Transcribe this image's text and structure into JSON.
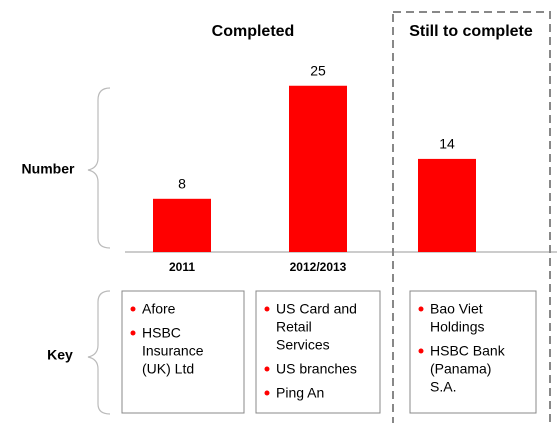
{
  "chart_data": {
    "type": "bar",
    "headers": [
      "Completed",
      "Still to complete"
    ],
    "row_labels": [
      "Number",
      "Key"
    ],
    "categories": [
      "2011",
      "2012/2013",
      null
    ],
    "values": [
      8,
      25,
      14
    ],
    "color": "#ff0000",
    "keys": [
      [
        [
          "Afore"
        ],
        [
          "HSBC",
          "Insurance",
          "(UK) Ltd"
        ]
      ],
      [
        [
          "US Card and",
          "Retail",
          "Services"
        ],
        [
          "US branches"
        ],
        [
          "Ping An"
        ]
      ],
      [
        [
          "Bao Viet",
          "Holdings"
        ],
        [
          "HSBC Bank",
          "(Panama)",
          "S.A."
        ]
      ]
    ]
  }
}
